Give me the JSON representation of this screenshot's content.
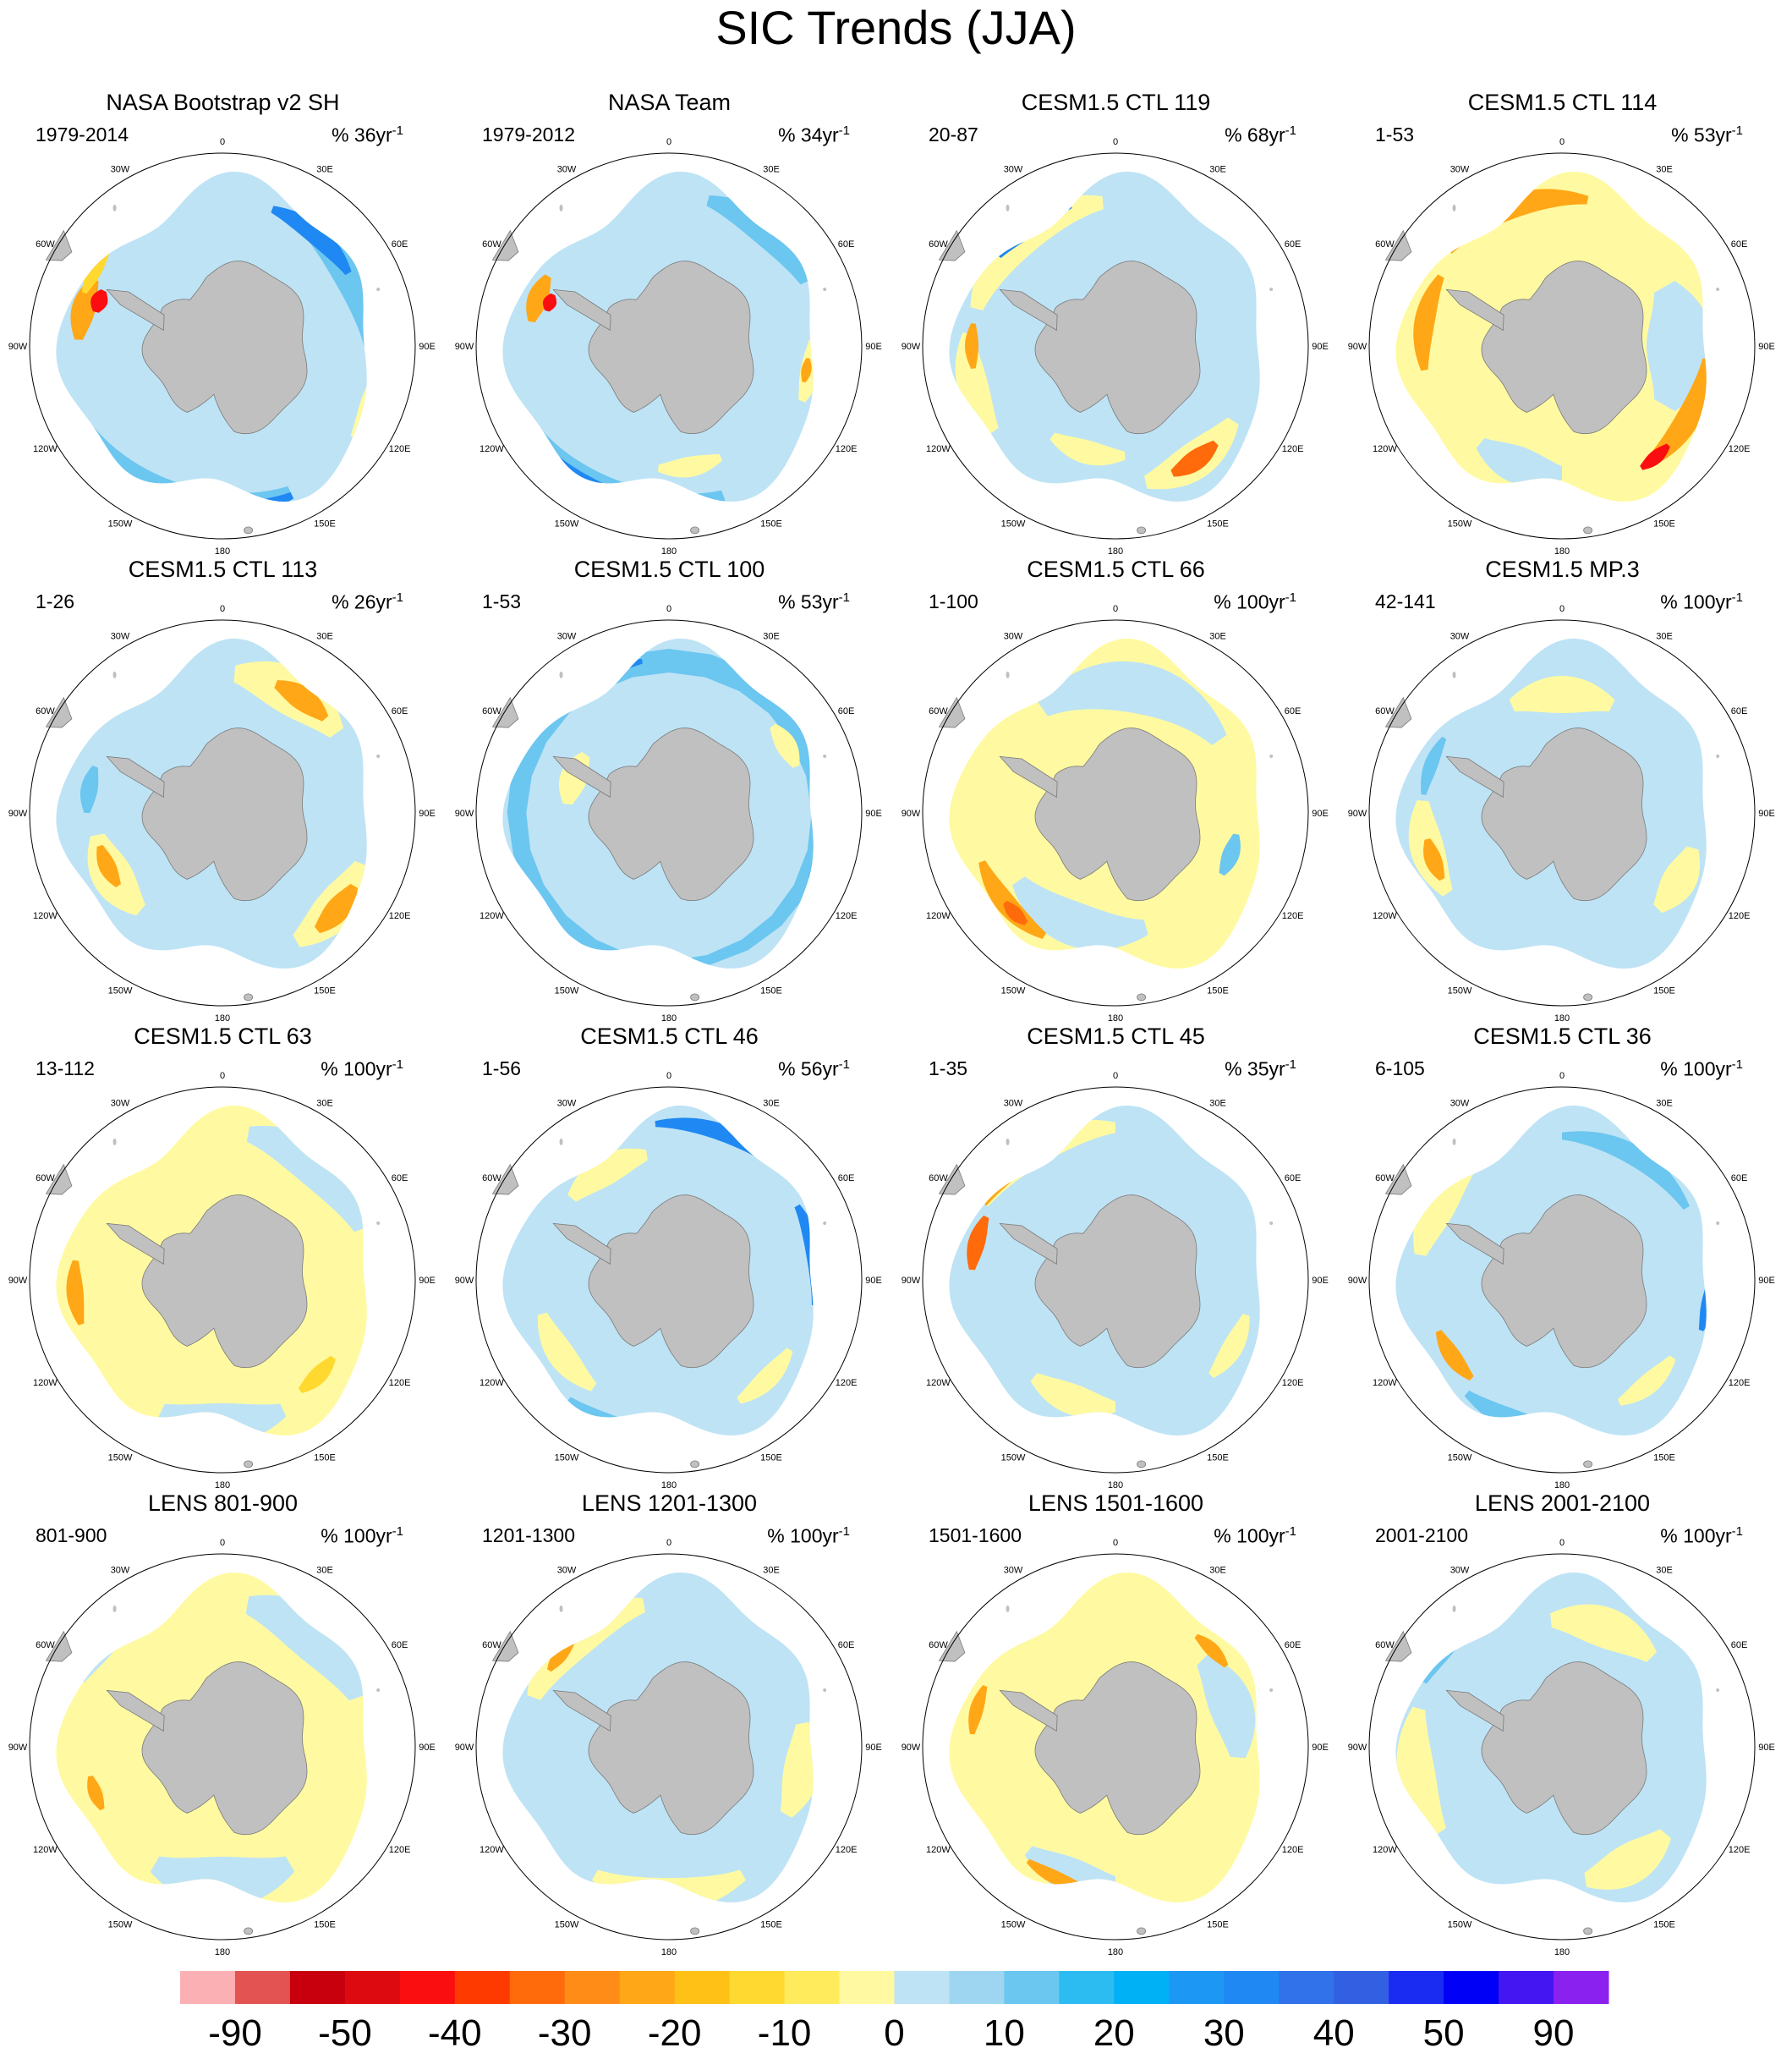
{
  "title": "SIC Trends (JJA)",
  "longitude_labels": [
    "0",
    "30E",
    "60E",
    "90E",
    "120E",
    "150E",
    "180",
    "150W",
    "120W",
    "90W",
    "60W",
    "30W"
  ],
  "panels": [
    {
      "title": "NASA Bootstrap v2 SH",
      "period": "1979-2014",
      "unit_scale": "% 36yr",
      "unit_exp": "-1",
      "pattern": "obs1"
    },
    {
      "title": "NASA Team",
      "period": "1979-2012",
      "unit_scale": "% 34yr",
      "unit_exp": "-1",
      "pattern": "obs2"
    },
    {
      "title": "CESM1.5 CTL 119",
      "period": "20-87",
      "unit_scale": "% 68yr",
      "unit_exp": "-1",
      "pattern": "ctl119"
    },
    {
      "title": "CESM1.5 CTL 114",
      "period": "1-53",
      "unit_scale": "% 53yr",
      "unit_exp": "-1",
      "pattern": "ctl114"
    },
    {
      "title": "CESM1.5 CTL 113",
      "period": "1-26",
      "unit_scale": "% 26yr",
      "unit_exp": "-1",
      "pattern": "ctl113"
    },
    {
      "title": "CESM1.5 CTL 100",
      "period": "1-53",
      "unit_scale": "% 53yr",
      "unit_exp": "-1",
      "pattern": "ctl100"
    },
    {
      "title": "CESM1.5 CTL 66",
      "period": "1-100",
      "unit_scale": "% 100yr",
      "unit_exp": "-1",
      "pattern": "ctl66"
    },
    {
      "title": "CESM1.5 MP.3",
      "period": "42-141",
      "unit_scale": "% 100yr",
      "unit_exp": "-1",
      "pattern": "mp3"
    },
    {
      "title": "CESM1.5 CTL 63",
      "period": "13-112",
      "unit_scale": "% 100yr",
      "unit_exp": "-1",
      "pattern": "ctl63"
    },
    {
      "title": "CESM1.5 CTL 46",
      "period": "1-56",
      "unit_scale": "% 56yr",
      "unit_exp": "-1",
      "pattern": "ctl46"
    },
    {
      "title": "CESM1.5 CTL 45",
      "period": "1-35",
      "unit_scale": "% 35yr",
      "unit_exp": "-1",
      "pattern": "ctl45"
    },
    {
      "title": "CESM1.5 CTL 36",
      "period": "6-105",
      "unit_scale": "% 100yr",
      "unit_exp": "-1",
      "pattern": "ctl36"
    },
    {
      "title": "LENS 801-900",
      "period": "801-900",
      "unit_scale": "% 100yr",
      "unit_exp": "-1",
      "pattern": "lens1"
    },
    {
      "title": "LENS 1201-1300",
      "period": "1201-1300",
      "unit_scale": "% 100yr",
      "unit_exp": "-1",
      "pattern": "lens2"
    },
    {
      "title": "LENS 1501-1600",
      "period": "1501-1600",
      "unit_scale": "% 100yr",
      "unit_exp": "-1",
      "pattern": "lens3"
    },
    {
      "title": "LENS 2001-2100",
      "period": "2001-2100",
      "unit_scale": "% 100yr",
      "unit_exp": "-1",
      "pattern": "lens4"
    }
  ],
  "colorbar": {
    "colors": [
      "#fbb1b3",
      "#e25352",
      "#c8000e",
      "#dd0a10",
      "#fa0e10",
      "#ff3a00",
      "#ff6a0b",
      "#ff8c17",
      "#ffa716",
      "#ffc116",
      "#ffd930",
      "#ffeb5b",
      "#fffaa1",
      "#bee3f5",
      "#9ed6f2",
      "#6bc6f0",
      "#2cbcf2",
      "#00b1f5",
      "#1c98f4",
      "#1f88f2",
      "#3171e9",
      "#3360e3",
      "#1a2cf2",
      "#0000f7",
      "#4416f2",
      "#8a21ee"
    ],
    "labels": [
      "-90",
      "-50",
      "-40",
      "-30",
      "-20",
      "-10",
      "0",
      "10",
      "20",
      "30",
      "40",
      "50",
      "90"
    ]
  },
  "colors": {
    "land": "#c0c0c0",
    "land_edge": "#7a7a7a",
    "blue_light": "#bee3f5",
    "blue_mid": "#6bc6f0",
    "blue_dark": "#1f88f2",
    "blue_deep": "#3360e3",
    "yellow": "#fffaa1",
    "yellow_mid": "#ffd930",
    "orange": "#ffa716",
    "orange_dark": "#ff6a0b",
    "red": "#fa0e10"
  }
}
